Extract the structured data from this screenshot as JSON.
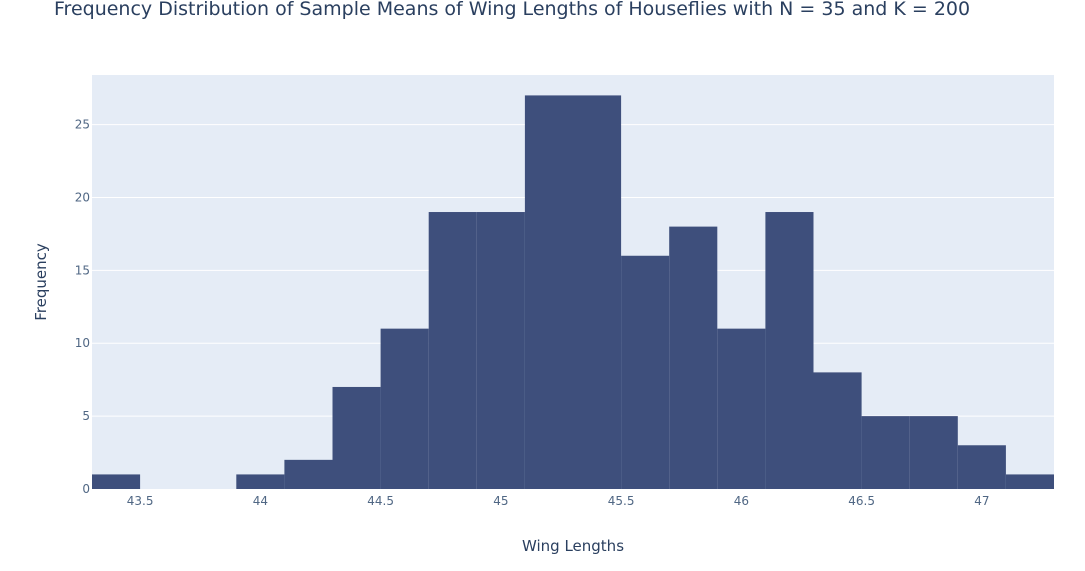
{
  "chart_data": {
    "type": "bar",
    "title": "Frequency Distribution of Sample Means of Wing Lengths of Houseflies with N = 35 and K = 200",
    "xlabel": "Wing Lengths",
    "ylabel": "Frequency",
    "xlim": [
      43.3,
      47.3
    ],
    "ylim": [
      0,
      28.4
    ],
    "grid": true,
    "bin_width": 0.2,
    "bins": [
      {
        "x0": 43.3,
        "x1": 43.5,
        "count": 1
      },
      {
        "x0": 43.5,
        "x1": 43.7,
        "count": 0
      },
      {
        "x0": 43.7,
        "x1": 43.9,
        "count": 0
      },
      {
        "x0": 43.9,
        "x1": 44.1,
        "count": 1
      },
      {
        "x0": 44.1,
        "x1": 44.3,
        "count": 2
      },
      {
        "x0": 44.3,
        "x1": 44.5,
        "count": 7
      },
      {
        "x0": 44.5,
        "x1": 44.7,
        "count": 11
      },
      {
        "x0": 44.7,
        "x1": 44.9,
        "count": 19
      },
      {
        "x0": 44.9,
        "x1": 45.1,
        "count": 19
      },
      {
        "x0": 45.1,
        "x1": 45.3,
        "count": 27
      },
      {
        "x0": 45.3,
        "x1": 45.5,
        "count": 27
      },
      {
        "x0": 45.5,
        "x1": 45.7,
        "count": 16
      },
      {
        "x0": 45.7,
        "x1": 45.9,
        "count": 18
      },
      {
        "x0": 45.9,
        "x1": 46.1,
        "count": 11
      },
      {
        "x0": 46.1,
        "x1": 46.3,
        "count": 19
      },
      {
        "x0": 46.3,
        "x1": 46.5,
        "count": 8
      },
      {
        "x0": 46.5,
        "x1": 46.7,
        "count": 5
      },
      {
        "x0": 46.7,
        "x1": 46.9,
        "count": 5
      },
      {
        "x0": 46.9,
        "x1": 47.1,
        "count": 3
      },
      {
        "x0": 47.1,
        "x1": 47.3,
        "count": 1
      }
    ],
    "x_ticks": [
      43.5,
      44,
      44.5,
      45,
      45.5,
      46,
      46.5,
      47
    ],
    "x_tick_labels": [
      "43.5",
      "44",
      "44.5",
      "45",
      "45.5",
      "46",
      "46.5",
      "47"
    ],
    "y_ticks": [
      0,
      5,
      10,
      15,
      20,
      25
    ],
    "y_tick_labels": [
      "0",
      "5",
      "10",
      "15",
      "20",
      "25"
    ]
  },
  "colors": {
    "bar": "#3e4f7c",
    "plot_bg": "#e5ecf6",
    "grid": "#ffffff",
    "title": "#2a3f5f",
    "tick": "#506784"
  }
}
